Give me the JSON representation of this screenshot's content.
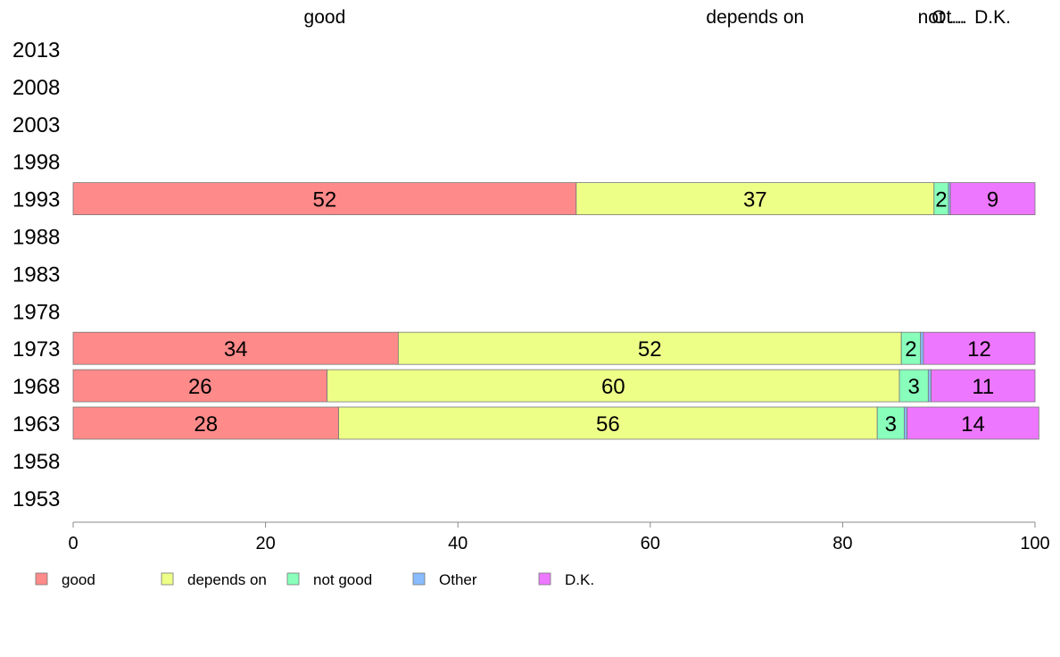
{
  "chart_data": {
    "type": "bar",
    "orientation": "horizontal",
    "stacked": true,
    "title": "",
    "xlabel": "",
    "ylabel": "",
    "xlim": [
      0,
      100
    ],
    "x_ticks": [
      0,
      20,
      40,
      60,
      80,
      100
    ],
    "grid": false,
    "legend_position": "bottom",
    "categories": [
      "2013",
      "2008",
      "2003",
      "1998",
      "1993",
      "1988",
      "1983",
      "1978",
      "1973",
      "1968",
      "1963",
      "1958",
      "1953"
    ],
    "top_labels": [
      "good",
      "depends on",
      "not ...",
      "Ot...",
      "D.K."
    ],
    "series": [
      {
        "name": "good",
        "color": "#ff8a8a",
        "values": [
          null,
          null,
          null,
          null,
          52.3,
          null,
          null,
          null,
          33.8,
          26.4,
          27.6,
          null,
          null
        ],
        "labels": [
          "",
          "",
          "",
          "",
          "52",
          "",
          "",
          "",
          "34",
          "26",
          "28",
          "",
          ""
        ]
      },
      {
        "name": "depends on",
        "color": "#eeff88",
        "values": [
          null,
          null,
          null,
          null,
          37.2,
          null,
          null,
          null,
          52.3,
          59.5,
          56.0,
          null,
          null
        ],
        "labels": [
          "",
          "",
          "",
          "",
          "37",
          "",
          "",
          "",
          "52",
          "60",
          "56",
          "",
          ""
        ]
      },
      {
        "name": "not good",
        "color": "#88ffbb",
        "values": [
          null,
          null,
          null,
          null,
          1.5,
          null,
          null,
          null,
          2.0,
          3.0,
          2.8,
          null,
          null
        ],
        "labels": [
          "",
          "",
          "",
          "",
          "2",
          "",
          "",
          "",
          "2",
          "3",
          "3",
          "",
          ""
        ]
      },
      {
        "name": "Other",
        "color": "#88bbff",
        "values": [
          null,
          null,
          null,
          null,
          0.2,
          null,
          null,
          null,
          0.3,
          0.3,
          0.3,
          null,
          null
        ],
        "labels": [
          "",
          "",
          "",
          "",
          "",
          "",
          "",
          "",
          "",
          "",
          "",
          "",
          ""
        ]
      },
      {
        "name": "D.K.",
        "color": "#ee77ff",
        "values": [
          null,
          null,
          null,
          null,
          8.8,
          null,
          null,
          null,
          11.6,
          10.8,
          13.7,
          null,
          null
        ],
        "labels": [
          "",
          "",
          "",
          "",
          "9",
          "",
          "",
          "",
          "12",
          "11",
          "14",
          "",
          ""
        ]
      }
    ]
  }
}
